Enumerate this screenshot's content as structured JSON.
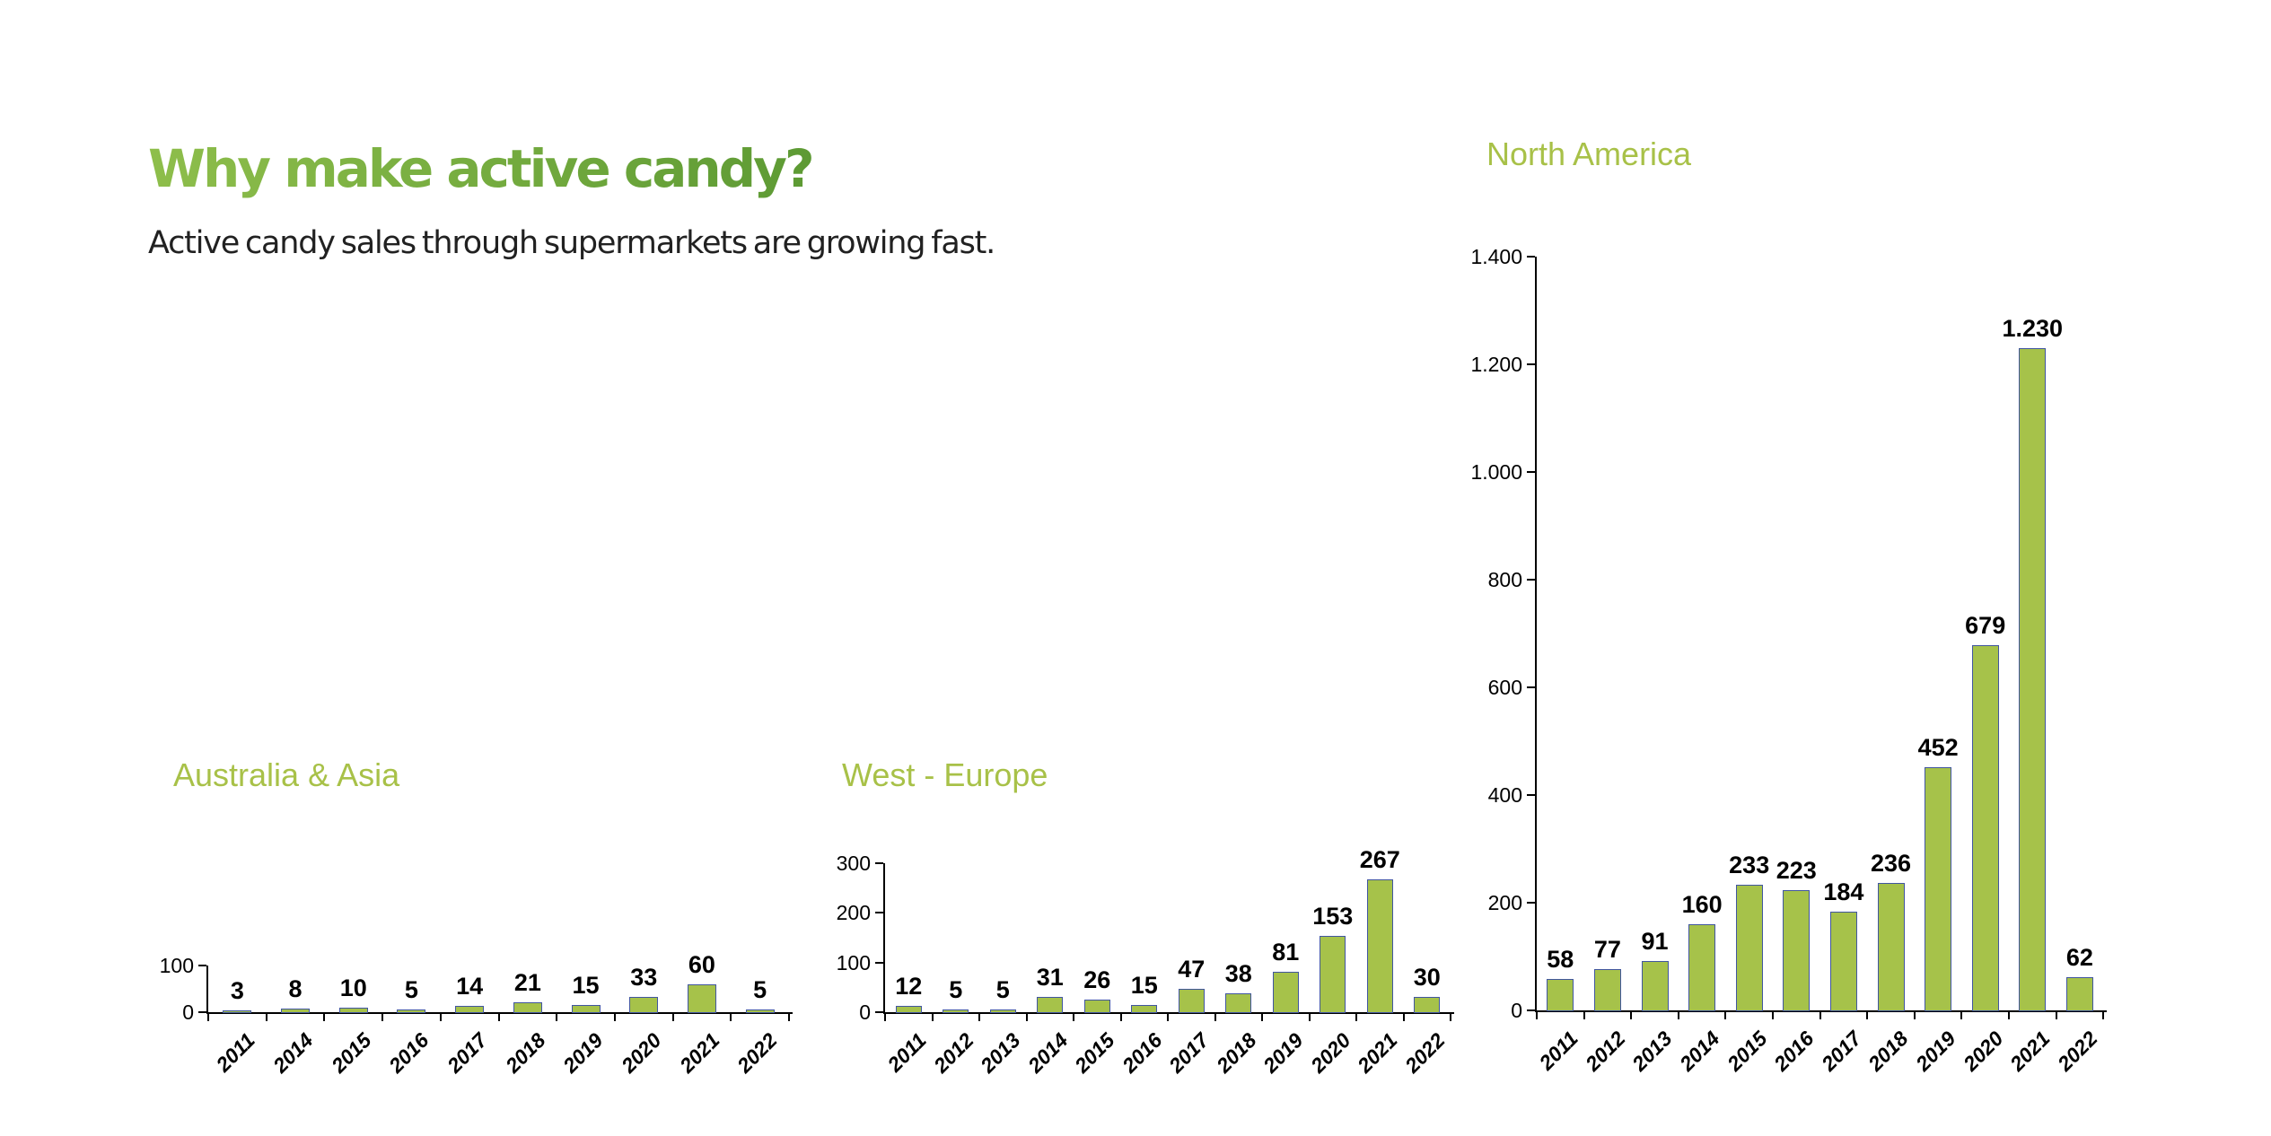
{
  "page": {
    "title": "Why make active candy?",
    "subtitle": "Active candy sales through supermarkets are growing fast.",
    "title_gradient_start": "#8ebe4b",
    "title_gradient_end": "#5d9a34",
    "subtitle_color": "#212121",
    "chart_title_color": "#a8c148",
    "bar_fill_color": "#a6c24a",
    "bar_border_color": "#4156a0",
    "axis_color": "#000000"
  },
  "chart_data": [
    {
      "type": "bar",
      "title": "Australia & Asia",
      "categories": [
        "2011",
        "2014",
        "2015",
        "2016",
        "2017",
        "2018",
        "2019",
        "2020",
        "2021",
        "2022"
      ],
      "values": [
        3,
        8,
        10,
        5,
        14,
        21,
        15,
        33,
        60,
        5
      ],
      "labels": [
        "3",
        "8",
        "10",
        "5",
        "14",
        "21",
        "15",
        "33",
        "60",
        "5"
      ],
      "ylim": [
        0,
        100
      ],
      "ytick_values": [
        0,
        100
      ],
      "ytick_labels": [
        "0",
        "100"
      ],
      "xlabel": "",
      "ylabel": "",
      "grid": false,
      "legend": false
    },
    {
      "type": "bar",
      "title": "West - Europe",
      "categories": [
        "2011",
        "2012",
        "2013",
        "2014",
        "2015",
        "2016",
        "2017",
        "2018",
        "2019",
        "2020",
        "2021",
        "2022"
      ],
      "values": [
        12,
        5,
        5,
        31,
        26,
        15,
        47,
        38,
        81,
        153,
        267,
        30
      ],
      "labels": [
        "12",
        "5",
        "5",
        "31",
        "26",
        "15",
        "47",
        "38",
        "81",
        "153",
        "267",
        "30"
      ],
      "ylim": [
        0,
        300
      ],
      "ytick_values": [
        0,
        100,
        200,
        300
      ],
      "ytick_labels": [
        "0",
        "100",
        "200",
        "300"
      ],
      "xlabel": "",
      "ylabel": "",
      "grid": false,
      "legend": false
    },
    {
      "type": "bar",
      "title": "North America",
      "categories": [
        "2011",
        "2012",
        "2013",
        "2014",
        "2015",
        "2016",
        "2017",
        "2018",
        "2019",
        "2020",
        "2021",
        "2022"
      ],
      "values": [
        58,
        77,
        91,
        160,
        233,
        223,
        184,
        236,
        452,
        679,
        1230,
        62
      ],
      "labels": [
        "58",
        "77",
        "91",
        "160",
        "233",
        "223",
        "184",
        "236",
        "452",
        "679",
        "1.230",
        "62"
      ],
      "ylim": [
        0,
        1400
      ],
      "ytick_values": [
        0,
        200,
        400,
        600,
        800,
        1000,
        1200,
        1400
      ],
      "ytick_labels": [
        "0",
        "200",
        "400",
        "600",
        "800",
        "1.000",
        "1.200",
        "1.400"
      ],
      "xlabel": "",
      "ylabel": "",
      "grid": false,
      "legend": false
    }
  ]
}
